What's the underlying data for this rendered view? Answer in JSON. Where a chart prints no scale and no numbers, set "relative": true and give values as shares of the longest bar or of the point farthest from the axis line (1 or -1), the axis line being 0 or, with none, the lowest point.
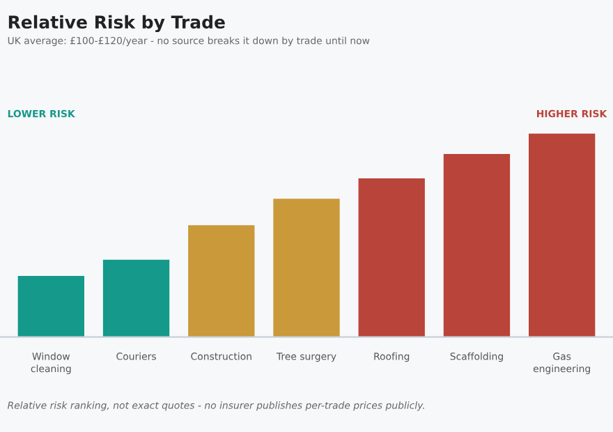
{
  "chart_data": {
    "type": "bar",
    "title": "Relative Risk by Trade",
    "subtitle": "UK average: £100-£120/year - no source breaks it down by trade until now",
    "categories": [
      "Window\ncleaning",
      "Couriers",
      "Construction",
      "Tree surgery",
      "Roofing",
      "Scaffolding",
      "Gas\nengineering"
    ],
    "values": [
      0.3,
      0.38,
      0.55,
      0.68,
      0.78,
      0.9,
      1.0
    ],
    "colors": [
      "#14998a",
      "#14998a",
      "#c9993a",
      "#c9993a",
      "#b94439",
      "#b94439",
      "#b94439"
    ],
    "relative": true,
    "grid": false,
    "legend": false,
    "annotations": [
      "LOWER RISK",
      "HIGHER RISK",
      "Relative risk ranking, not exact quotes - no insurer publishes per-trade prices publicly."
    ]
  }
}
